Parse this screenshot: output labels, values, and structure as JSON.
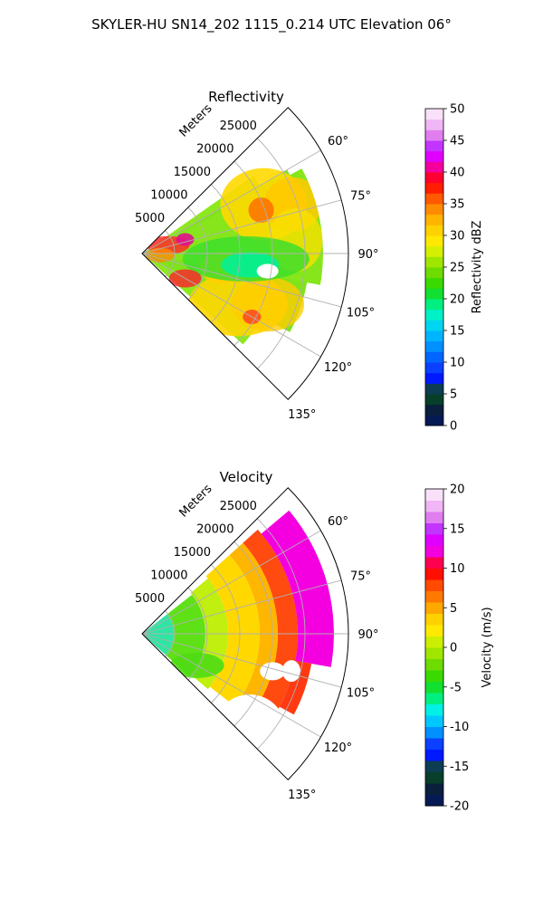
{
  "figure": {
    "title": "SKYLER-HU  SN14_202  1115_0.214 UTC Elevation 06°"
  },
  "chart_data": [
    {
      "type": "polar_sector",
      "title": "Reflectivity",
      "range_label": "Meters",
      "theta_ticks": [
        "60°",
        "75°",
        "90°",
        "105°",
        "120°",
        "135°"
      ],
      "theta_range_deg": [
        45,
        135
      ],
      "r_ticks": [
        "5000",
        "10000",
        "15000",
        "20000",
        "25000"
      ],
      "r_max": 32000,
      "colorbar": {
        "label": "Reflectivity dBZ",
        "min": 0,
        "max": 50,
        "ticks": [
          "0",
          "5",
          "10",
          "15",
          "20",
          "25",
          "30",
          "35",
          "40",
          "45",
          "50"
        ]
      },
      "field": "reflectivity"
    },
    {
      "type": "polar_sector",
      "title": "Velocity",
      "range_label": "Meters",
      "theta_ticks": [
        "60°",
        "75°",
        "90°",
        "105°",
        "120°",
        "135°"
      ],
      "theta_range_deg": [
        45,
        135
      ],
      "r_ticks": [
        "5000",
        "10000",
        "15000",
        "20000",
        "25000"
      ],
      "r_max": 32000,
      "colorbar": {
        "label": "Velocity (m/s)",
        "min": -20,
        "max": 20,
        "ticks": [
          "-20",
          "-15",
          "-10",
          "-5",
          "0",
          "5",
          "10",
          "15",
          "20"
        ]
      },
      "field": "velocity"
    }
  ]
}
